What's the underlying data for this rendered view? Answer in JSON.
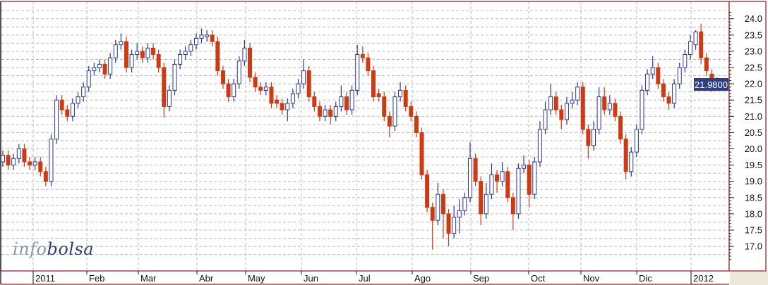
{
  "chart_data": {
    "type": "candlestick",
    "title": "",
    "xlabel": "",
    "ylabel": "",
    "ylim": [
      16.5,
      24.3
    ],
    "y_ticks": [
      "17.0",
      "17.5",
      "18.0",
      "18.5",
      "19.0",
      "19.5",
      "20.0",
      "20.5",
      "21.0",
      "21.5",
      "22.0",
      "22.5",
      "23.0",
      "23.5",
      "24.0"
    ],
    "x_ticks": [
      "2011",
      "Feb",
      "Mar",
      "Abr",
      "May",
      "Jun",
      "Jul",
      "Ago",
      "Sep",
      "Oct",
      "Nov",
      "Dic",
      "2012"
    ],
    "grid": true,
    "last_price_label": "21.9800",
    "colors": {
      "up": "#2a3890",
      "down": "#cc3b14",
      "frame": "#9a4848",
      "grid": "#bbbbbb",
      "price_tag_bg": "#2f3f86"
    },
    "ohlc": [
      [
        19.6,
        19.95,
        19.45,
        19.8
      ],
      [
        19.8,
        19.95,
        19.35,
        19.5
      ],
      [
        19.5,
        19.85,
        19.35,
        19.7
      ],
      [
        19.7,
        20.15,
        19.55,
        20.0
      ],
      [
        20.0,
        20.15,
        19.45,
        19.6
      ],
      [
        19.6,
        19.75,
        19.35,
        19.5
      ],
      [
        19.5,
        19.75,
        19.35,
        19.6
      ],
      [
        19.6,
        19.75,
        19.15,
        19.3
      ],
      [
        19.3,
        19.45,
        18.85,
        19.0
      ],
      [
        19.0,
        20.45,
        18.85,
        20.3
      ],
      [
        20.3,
        21.65,
        20.15,
        21.5
      ],
      [
        21.5,
        21.65,
        21.05,
        21.2
      ],
      [
        21.2,
        21.35,
        20.85,
        21.0
      ],
      [
        21.0,
        21.55,
        20.85,
        21.4
      ],
      [
        21.4,
        21.75,
        21.25,
        21.6
      ],
      [
        21.6,
        22.05,
        21.45,
        21.9
      ],
      [
        21.9,
        22.55,
        21.75,
        22.4
      ],
      [
        22.4,
        22.65,
        22.25,
        22.5
      ],
      [
        22.5,
        22.75,
        22.35,
        22.6
      ],
      [
        22.6,
        22.75,
        22.15,
        22.3
      ],
      [
        22.3,
        22.95,
        22.15,
        22.8
      ],
      [
        22.8,
        23.35,
        22.65,
        23.2
      ],
      [
        23.2,
        23.55,
        23.05,
        23.3
      ],
      [
        23.3,
        23.45,
        22.35,
        22.5
      ],
      [
        22.5,
        23.05,
        22.35,
        22.9
      ],
      [
        22.9,
        23.25,
        22.75,
        23.0
      ],
      [
        23.0,
        23.15,
        22.65,
        22.8
      ],
      [
        22.8,
        23.25,
        22.65,
        23.1
      ],
      [
        23.1,
        23.25,
        22.75,
        22.9
      ],
      [
        22.9,
        23.05,
        22.35,
        22.5
      ],
      [
        22.5,
        22.65,
        20.95,
        21.3
      ],
      [
        21.3,
        21.95,
        21.15,
        21.8
      ],
      [
        21.8,
        22.75,
        21.65,
        22.6
      ],
      [
        22.6,
        23.05,
        22.45,
        22.9
      ],
      [
        22.9,
        23.15,
        22.75,
        23.0
      ],
      [
        23.0,
        23.35,
        22.85,
        23.2
      ],
      [
        23.2,
        23.55,
        23.05,
        23.4
      ],
      [
        23.4,
        23.7,
        23.25,
        23.5
      ],
      [
        23.45,
        23.65,
        23.3,
        23.5
      ],
      [
        23.5,
        23.65,
        23.15,
        23.3
      ],
      [
        23.3,
        23.45,
        22.25,
        22.4
      ],
      [
        22.4,
        22.55,
        21.85,
        22.0
      ],
      [
        22.0,
        22.15,
        21.45,
        21.6
      ],
      [
        21.6,
        22.15,
        21.45,
        22.0
      ],
      [
        22.0,
        22.85,
        21.85,
        22.7
      ],
      [
        22.7,
        23.35,
        22.55,
        23.1
      ],
      [
        23.1,
        23.25,
        22.05,
        22.2
      ],
      [
        22.2,
        22.35,
        21.75,
        21.9
      ],
      [
        21.9,
        22.05,
        21.65,
        21.8
      ],
      [
        21.8,
        22.05,
        21.65,
        21.9
      ],
      [
        21.9,
        22.05,
        21.25,
        21.4
      ],
      [
        21.5,
        21.65,
        21.25,
        21.4
      ],
      [
        21.4,
        21.55,
        21.05,
        21.2
      ],
      [
        21.2,
        21.55,
        20.85,
        21.4
      ],
      [
        21.4,
        21.85,
        21.25,
        21.7
      ],
      [
        21.7,
        22.15,
        21.55,
        22.0
      ],
      [
        22.0,
        22.75,
        21.85,
        22.4
      ],
      [
        22.4,
        22.55,
        21.45,
        21.6
      ],
      [
        21.6,
        21.75,
        21.15,
        21.3
      ],
      [
        21.3,
        21.45,
        20.85,
        21.0
      ],
      [
        21.0,
        21.35,
        20.85,
        21.2
      ],
      [
        21.2,
        21.35,
        20.75,
        21.0
      ],
      [
        21.0,
        21.45,
        20.85,
        21.3
      ],
      [
        21.3,
        21.95,
        21.15,
        21.6
      ],
      [
        21.6,
        21.75,
        21.05,
        21.2
      ],
      [
        21.2,
        21.95,
        21.05,
        21.8
      ],
      [
        21.8,
        23.2,
        21.65,
        22.9
      ],
      [
        22.9,
        23.15,
        22.65,
        22.8
      ],
      [
        22.8,
        22.95,
        22.25,
        22.4
      ],
      [
        22.4,
        22.55,
        21.45,
        21.6
      ],
      [
        21.7,
        21.85,
        21.45,
        21.6
      ],
      [
        21.6,
        21.75,
        20.85,
        21.0
      ],
      [
        21.0,
        21.15,
        20.35,
        20.7
      ],
      [
        20.7,
        21.75,
        20.55,
        21.6
      ],
      [
        21.6,
        22.05,
        21.45,
        21.8
      ],
      [
        21.8,
        21.95,
        21.15,
        21.3
      ],
      [
        21.3,
        21.45,
        20.85,
        21.0
      ],
      [
        21.0,
        21.15,
        20.35,
        20.5
      ],
      [
        20.5,
        20.65,
        19.05,
        19.2
      ],
      [
        19.2,
        19.35,
        18.05,
        18.2
      ],
      [
        18.2,
        18.35,
        16.9,
        17.8
      ],
      [
        17.8,
        18.95,
        17.65,
        18.6
      ],
      [
        18.6,
        18.75,
        17.25,
        18.0
      ],
      [
        18.0,
        18.15,
        17.0,
        17.4
      ],
      [
        17.4,
        18.25,
        17.25,
        17.9
      ],
      [
        17.9,
        18.45,
        17.4,
        18.1
      ],
      [
        18.1,
        18.65,
        17.95,
        18.5
      ],
      [
        18.5,
        20.2,
        18.35,
        19.7
      ],
      [
        19.7,
        19.85,
        18.85,
        19.0
      ],
      [
        19.0,
        19.15,
        17.65,
        18.0
      ],
      [
        18.0,
        18.95,
        17.85,
        18.6
      ],
      [
        18.6,
        19.55,
        18.45,
        19.2
      ],
      [
        19.2,
        19.35,
        18.65,
        19.0
      ],
      [
        19.0,
        19.6,
        18.85,
        19.3
      ],
      [
        19.3,
        19.45,
        18.35,
        18.5
      ],
      [
        18.5,
        18.65,
        17.5,
        18.0
      ],
      [
        18.0,
        19.55,
        17.85,
        19.4
      ],
      [
        19.4,
        19.8,
        19.25,
        19.5
      ],
      [
        19.5,
        19.65,
        18.2,
        18.6
      ],
      [
        18.6,
        19.75,
        18.45,
        19.6
      ],
      [
        19.6,
        20.85,
        19.45,
        20.6
      ],
      [
        20.6,
        21.45,
        20.45,
        21.2
      ],
      [
        21.2,
        22.0,
        21.05,
        21.6
      ],
      [
        21.6,
        21.75,
        21.05,
        21.2
      ],
      [
        21.2,
        21.35,
        20.6,
        20.9
      ],
      [
        20.9,
        21.6,
        20.75,
        21.4
      ],
      [
        21.4,
        21.75,
        21.25,
        21.5
      ],
      [
        21.5,
        22.05,
        21.35,
        21.9
      ],
      [
        21.9,
        22.05,
        20.45,
        20.6
      ],
      [
        20.6,
        20.75,
        19.7,
        20.1
      ],
      [
        20.1,
        20.85,
        19.95,
        20.6
      ],
      [
        20.6,
        21.9,
        20.45,
        21.6
      ],
      [
        21.6,
        21.9,
        21.05,
        21.2
      ],
      [
        21.2,
        21.65,
        21.05,
        21.4
      ],
      [
        21.4,
        21.55,
        20.85,
        21.0
      ],
      [
        21.0,
        21.15,
        20.15,
        20.3
      ],
      [
        20.3,
        20.45,
        19.05,
        19.3
      ],
      [
        19.3,
        20.05,
        19.15,
        19.9
      ],
      [
        19.9,
        20.75,
        19.75,
        20.6
      ],
      [
        20.6,
        21.95,
        20.45,
        21.8
      ],
      [
        21.8,
        22.45,
        21.65,
        22.3
      ],
      [
        22.3,
        22.85,
        22.15,
        22.5
      ],
      [
        22.5,
        22.65,
        21.85,
        22.0
      ],
      [
        22.0,
        22.15,
        21.45,
        21.6
      ],
      [
        21.6,
        21.75,
        21.2,
        21.4
      ],
      [
        21.4,
        22.15,
        21.25,
        22.0
      ],
      [
        22.0,
        22.65,
        21.85,
        22.5
      ],
      [
        22.5,
        23.05,
        22.35,
        22.9
      ],
      [
        22.9,
        23.5,
        22.75,
        23.3
      ],
      [
        23.2,
        23.65,
        23.05,
        23.6
      ],
      [
        23.6,
        23.85,
        22.6,
        22.8
      ],
      [
        22.8,
        22.95,
        22.25,
        22.4
      ],
      [
        22.3,
        22.45,
        21.75,
        21.9
      ],
      [
        21.85,
        22.2,
        21.8,
        21.98
      ]
    ]
  },
  "logo": {
    "part1": "info",
    "part2": "bolsa"
  }
}
